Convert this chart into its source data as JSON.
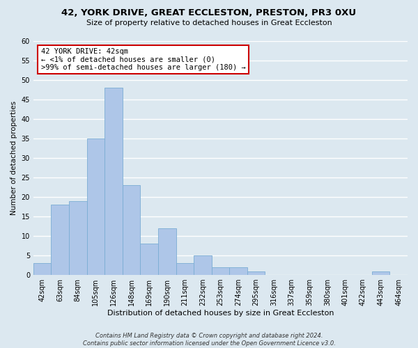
{
  "title": "42, YORK DRIVE, GREAT ECCLESTON, PRESTON, PR3 0XU",
  "subtitle": "Size of property relative to detached houses in Great Eccleston",
  "xlabel": "Distribution of detached houses by size in Great Eccleston",
  "ylabel": "Number of detached properties",
  "footer_line1": "Contains HM Land Registry data © Crown copyright and database right 2024.",
  "footer_line2": "Contains public sector information licensed under the Open Government Licence v3.0.",
  "bin_labels": [
    "42sqm",
    "63sqm",
    "84sqm",
    "105sqm",
    "126sqm",
    "148sqm",
    "169sqm",
    "190sqm",
    "211sqm",
    "232sqm",
    "253sqm",
    "274sqm",
    "295sqm",
    "316sqm",
    "337sqm",
    "359sqm",
    "380sqm",
    "401sqm",
    "422sqm",
    "443sqm",
    "464sqm"
  ],
  "bar_values": [
    3,
    18,
    19,
    35,
    48,
    23,
    8,
    12,
    3,
    5,
    2,
    2,
    1,
    0,
    0,
    0,
    0,
    0,
    0,
    1,
    0
  ],
  "bar_color": "#aec6e8",
  "bar_edge_color": "#7aadd4",
  "ylim": [
    0,
    60
  ],
  "yticks": [
    0,
    5,
    10,
    15,
    20,
    25,
    30,
    35,
    40,
    45,
    50,
    55,
    60
  ],
  "annotation_line1": "42 YORK DRIVE: 42sqm",
  "annotation_line2": "← <1% of detached houses are smaller (0)",
  "annotation_line3": ">99% of semi-detached houses are larger (180) →",
  "annotation_box_color": "#cc0000",
  "annotation_box_fill": "#ffffff",
  "background_color": "#dce8f0",
  "grid_color": "#ffffff",
  "title_fontsize": 9.5,
  "subtitle_fontsize": 8,
  "ylabel_fontsize": 7.5,
  "xlabel_fontsize": 8,
  "tick_fontsize": 7,
  "annot_fontsize": 7.5,
  "footer_fontsize": 6
}
